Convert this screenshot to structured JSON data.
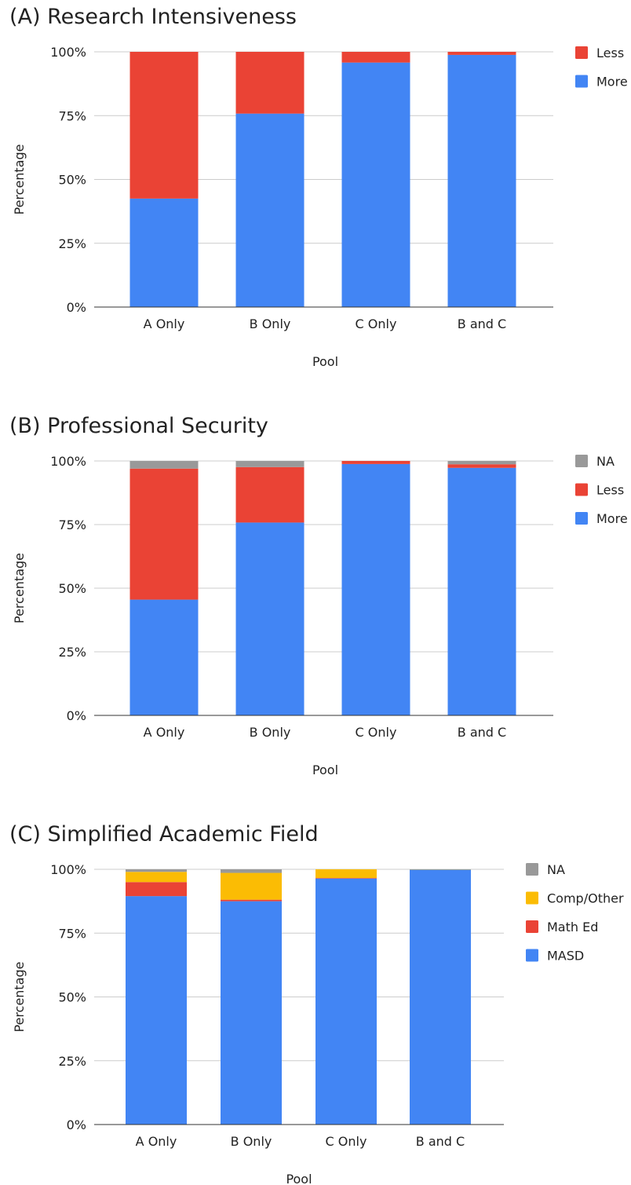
{
  "chart_data": [
    {
      "type": "bar",
      "stacked": true,
      "title": "(A) Research Intensiveness",
      "xlabel": "Pool",
      "ylabel": "Percentage",
      "ylim": [
        0,
        100
      ],
      "yticks": [
        "0%",
        "25%",
        "50%",
        "75%",
        "100%"
      ],
      "categories": [
        "A Only",
        "B Only",
        "C Only",
        "B and C"
      ],
      "grid": true,
      "legend_position": "right",
      "series": [
        {
          "name": "More",
          "color": "#4285f4",
          "values": [
            42.5,
            75.8,
            95.8,
            98.8
          ]
        },
        {
          "name": "Less",
          "color": "#ea4335",
          "values": [
            57.5,
            24.2,
            4.2,
            1.2
          ]
        }
      ]
    },
    {
      "type": "bar",
      "stacked": true,
      "title": "(B) Professional Security",
      "xlabel": "Pool",
      "ylabel": "Percentage",
      "ylim": [
        0,
        100
      ],
      "yticks": [
        "0%",
        "25%",
        "50%",
        "75%",
        "100%"
      ],
      "categories": [
        "A Only",
        "B Only",
        "C Only",
        "B and C"
      ],
      "grid": true,
      "legend_position": "right",
      "series": [
        {
          "name": "More",
          "color": "#4285f4",
          "values": [
            45.5,
            75.8,
            98.8,
            97.3
          ]
        },
        {
          "name": "Less",
          "color": "#ea4335",
          "values": [
            51.5,
            21.8,
            1.2,
            1.4
          ]
        },
        {
          "name": "NA",
          "color": "#999999",
          "values": [
            3.0,
            2.4,
            0.0,
            1.3
          ]
        }
      ]
    },
    {
      "type": "bar",
      "stacked": true,
      "title": "(C) Simplified Academic Field",
      "xlabel": "Pool",
      "ylabel": "Percentage",
      "ylim": [
        0,
        100
      ],
      "yticks": [
        "0%",
        "25%",
        "50%",
        "75%",
        "100%"
      ],
      "categories": [
        "A Only",
        "B Only",
        "C Only",
        "B and C"
      ],
      "grid": true,
      "legend_position": "right",
      "series": [
        {
          "name": "MASD",
          "color": "#4285f4",
          "values": [
            89.5,
            87.5,
            96.4,
            99.9
          ]
        },
        {
          "name": "Math Ed",
          "color": "#ea4335",
          "values": [
            5.5,
            0.6,
            0.2,
            0.0
          ]
        },
        {
          "name": "Comp/Other",
          "color": "#fbbc04",
          "values": [
            4.0,
            10.5,
            3.4,
            0.1
          ]
        },
        {
          "name": "NA",
          "color": "#999999",
          "values": [
            1.0,
            1.4,
            0.0,
            0.0
          ]
        }
      ]
    }
  ]
}
